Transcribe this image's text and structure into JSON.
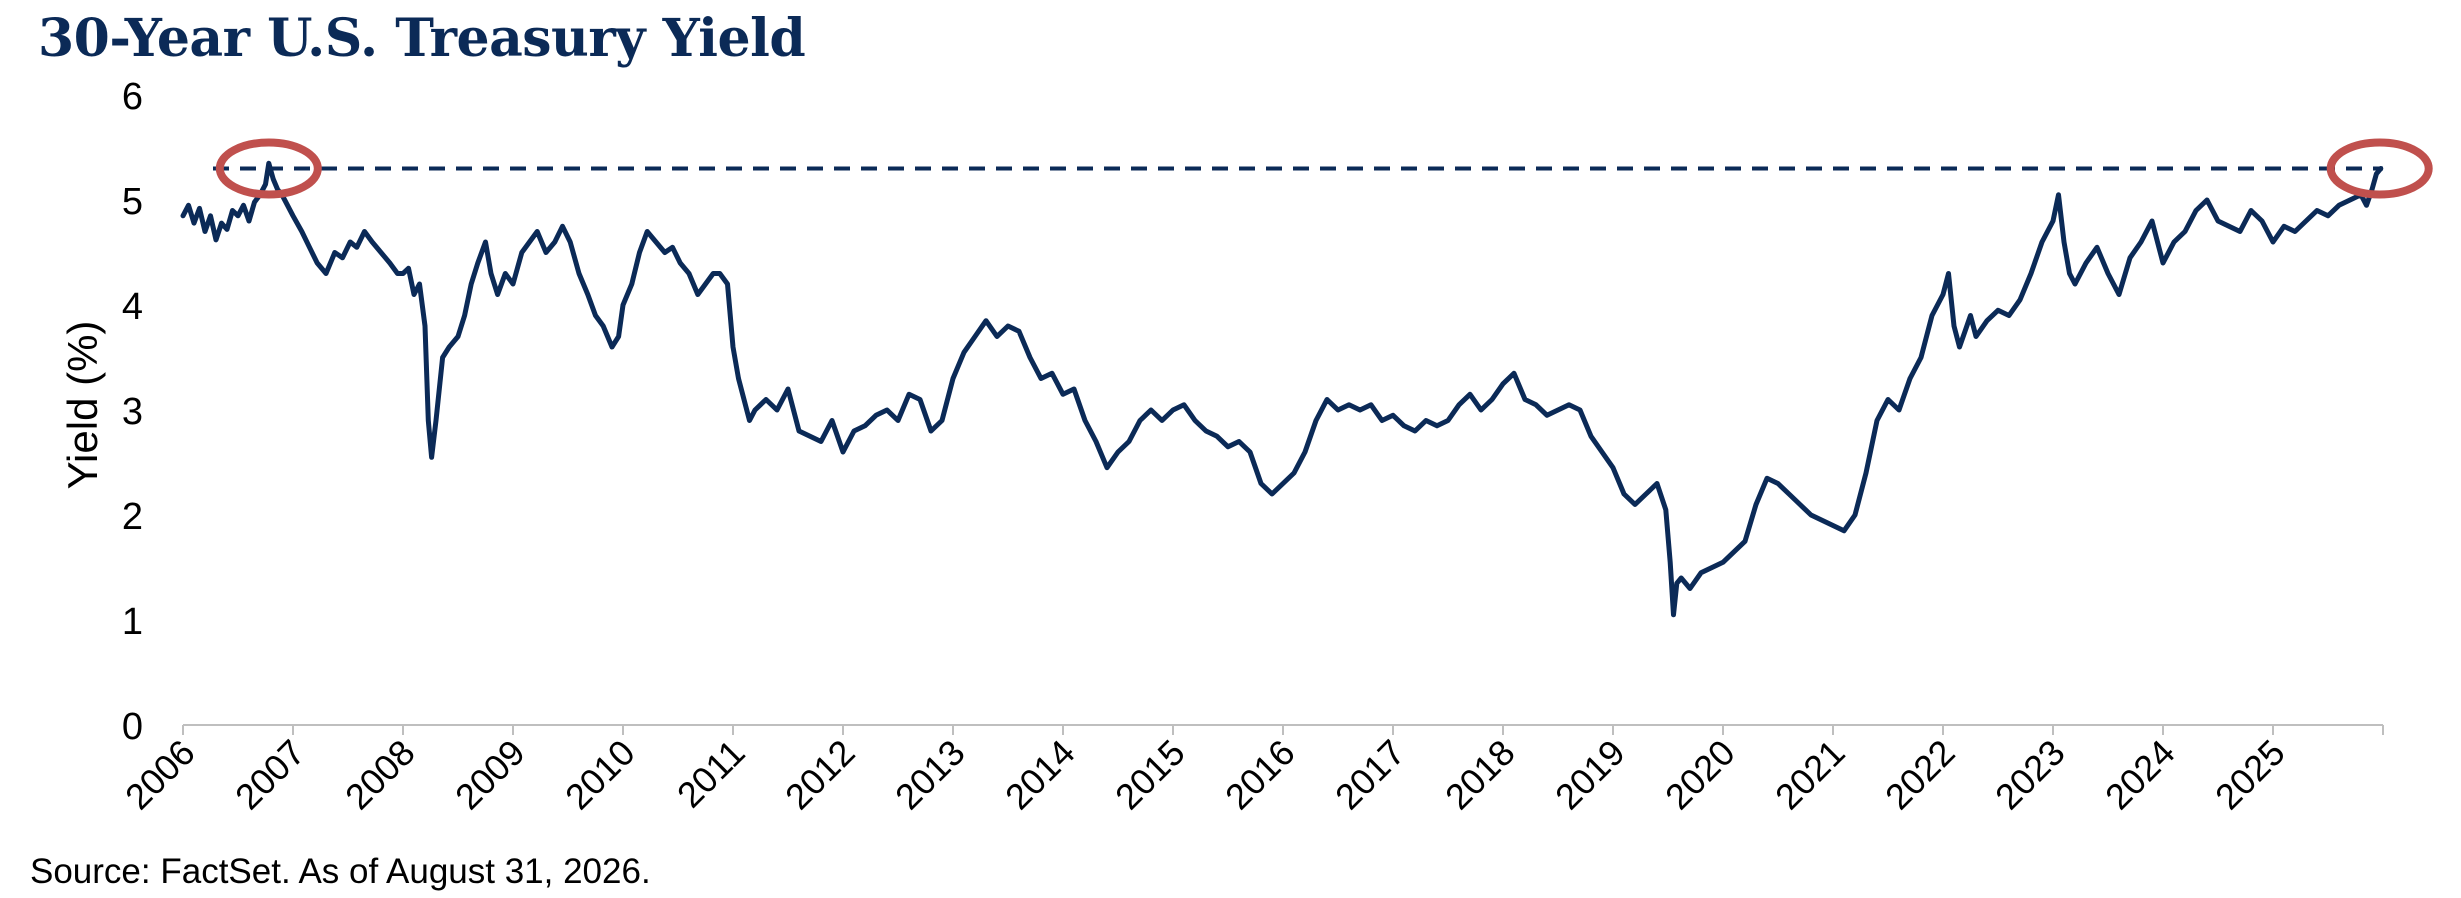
{
  "chart_data": {
    "type": "line",
    "title": "30-Year U.S. Treasury Yield",
    "ylabel": "Yield (%)",
    "xlabel": "",
    "source": "Source: FactSet. As of August 31, 2026.",
    "ylim": [
      0,
      6
    ],
    "xlim": [
      2006,
      2026
    ],
    "y_ticks": [
      "0",
      "1",
      "2",
      "3",
      "4",
      "5",
      "6"
    ],
    "x_ticks": [
      "2006",
      "2007",
      "2008",
      "2009",
      "2010",
      "2011",
      "2012",
      "2013",
      "2014",
      "2015",
      "2016",
      "2017",
      "2018",
      "2019",
      "2020",
      "2021",
      "2022",
      "2023",
      "2024",
      "2025"
    ],
    "grid": false,
    "legend": "none",
    "reference_line": {
      "y": 5.3,
      "style": "dashed"
    },
    "highlight_circles": [
      {
        "x": 2006.78,
        "y": 5.3
      },
      {
        "x": 2025.97,
        "y": 5.3
      }
    ],
    "colors": {
      "line": "#0b2a57",
      "reference": "#0b2a57",
      "circle": "#c0504d",
      "title": "#0b2a57"
    },
    "series": [
      {
        "x": [
          2006.0,
          2006.05,
          2006.1,
          2006.15,
          2006.2,
          2006.25,
          2006.3,
          2006.35,
          2006.4,
          2006.45,
          2006.5,
          2006.55,
          2006.6,
          2006.65,
          2006.7,
          2006.75,
          2006.78,
          2006.82,
          2006.86,
          2006.9,
          2006.95,
          2007.0,
          2007.08,
          2007.15,
          2007.22,
          2007.3,
          2007.38,
          2007.45,
          2007.52,
          2007.58,
          2007.65,
          2007.72,
          2007.8,
          2007.88,
          2007.95,
          2008.0,
          2008.05,
          2008.1,
          2008.15,
          2008.2,
          2008.23,
          2008.26,
          2008.3,
          2008.36,
          2008.42,
          2008.5,
          2008.56,
          2008.62,
          2008.68,
          2008.75,
          2008.8,
          2008.86,
          2008.93,
          2009.0,
          2009.08,
          2009.15,
          2009.22,
          2009.3,
          2009.38,
          2009.45,
          2009.52,
          2009.6,
          2009.68,
          2009.75,
          2009.82,
          2009.9,
          2009.96,
          2010.0,
          2010.08,
          2010.15,
          2010.22,
          2010.3,
          2010.38,
          2010.45,
          2010.52,
          2010.6,
          2010.68,
          2010.75,
          2010.82,
          2010.88,
          2010.95,
          2011.0,
          2011.05,
          2011.1,
          2011.15,
          2011.2,
          2011.3,
          2011.4,
          2011.5,
          2011.6,
          2011.7,
          2011.8,
          2011.9,
          2012.0,
          2012.1,
          2012.2,
          2012.3,
          2012.4,
          2012.5,
          2012.6,
          2012.7,
          2012.8,
          2012.9,
          2013.0,
          2013.1,
          2013.2,
          2013.3,
          2013.4,
          2013.5,
          2013.6,
          2013.7,
          2013.8,
          2013.9,
          2014.0,
          2014.1,
          2014.2,
          2014.3,
          2014.4,
          2014.5,
          2014.6,
          2014.7,
          2014.8,
          2014.9,
          2015.0,
          2015.1,
          2015.2,
          2015.3,
          2015.4,
          2015.5,
          2015.6,
          2015.7,
          2015.8,
          2015.9,
          2016.0,
          2016.1,
          2016.2,
          2016.3,
          2016.4,
          2016.5,
          2016.6,
          2016.7,
          2016.8,
          2016.9,
          2017.0,
          2017.1,
          2017.2,
          2017.3,
          2017.4,
          2017.5,
          2017.6,
          2017.7,
          2017.8,
          2017.9,
          2018.0,
          2018.1,
          2018.2,
          2018.3,
          2018.4,
          2018.5,
          2018.6,
          2018.7,
          2018.8,
          2018.9,
          2019.0,
          2019.1,
          2019.2,
          2019.3,
          2019.4,
          2019.48,
          2019.52,
          2019.55,
          2019.58,
          2019.62,
          2019.7,
          2019.8,
          2019.9,
          2020.0,
          2020.1,
          2020.2,
          2020.3,
          2020.4,
          2020.5,
          2020.6,
          2020.7,
          2020.8,
          2020.9,
          2021.0,
          2021.1,
          2021.2,
          2021.3,
          2021.4,
          2021.5,
          2021.6,
          2021.7,
          2021.8,
          2021.9,
          2022.0,
          2022.05,
          2022.1,
          2022.15,
          2022.2,
          2022.25,
          2022.3,
          2022.4,
          2022.5,
          2022.6,
          2022.7,
          2022.8,
          2022.9,
          2023.0,
          2023.05,
          2023.1,
          2023.15,
          2023.2,
          2023.3,
          2023.4,
          2023.5,
          2023.6,
          2023.7,
          2023.8,
          2023.9,
          2024.0,
          2024.1,
          2024.2,
          2024.3,
          2024.4,
          2024.5,
          2024.6,
          2024.7,
          2024.8,
          2024.9,
          2025.0,
          2025.1,
          2025.2,
          2025.3,
          2025.4,
          2025.5,
          2025.6,
          2025.7,
          2025.8,
          2025.85,
          2025.9,
          2025.94,
          2025.98
        ],
        "y": [
          4.85,
          4.95,
          4.78,
          4.92,
          4.7,
          4.85,
          4.62,
          4.78,
          4.72,
          4.9,
          4.85,
          4.95,
          4.8,
          4.98,
          5.05,
          5.15,
          5.35,
          5.2,
          5.1,
          5.05,
          4.95,
          4.85,
          4.7,
          4.55,
          4.4,
          4.3,
          4.5,
          4.45,
          4.6,
          4.55,
          4.7,
          4.6,
          4.5,
          4.4,
          4.3,
          4.3,
          4.35,
          4.1,
          4.2,
          3.8,
          2.9,
          2.55,
          2.9,
          3.5,
          3.6,
          3.7,
          3.9,
          4.2,
          4.4,
          4.6,
          4.3,
          4.1,
          4.3,
          4.2,
          4.5,
          4.6,
          4.7,
          4.5,
          4.6,
          4.75,
          4.6,
          4.3,
          4.1,
          3.9,
          3.8,
          3.6,
          3.7,
          4.0,
          4.2,
          4.5,
          4.7,
          4.6,
          4.5,
          4.55,
          4.4,
          4.3,
          4.1,
          4.2,
          4.3,
          4.3,
          4.2,
          3.6,
          3.3,
          3.1,
          2.9,
          3.0,
          3.1,
          3.0,
          3.2,
          2.8,
          2.75,
          2.7,
          2.9,
          2.6,
          2.8,
          2.85,
          2.95,
          3.0,
          2.9,
          3.15,
          3.1,
          2.8,
          2.9,
          3.3,
          3.55,
          3.7,
          3.85,
          3.7,
          3.8,
          3.75,
          3.5,
          3.3,
          3.35,
          3.15,
          3.2,
          2.9,
          2.7,
          2.45,
          2.6,
          2.7,
          2.9,
          3.0,
          2.9,
          3.0,
          3.05,
          2.9,
          2.8,
          2.75,
          2.65,
          2.7,
          2.6,
          2.3,
          2.2,
          2.3,
          2.4,
          2.6,
          2.9,
          3.1,
          3.0,
          3.05,
          3.0,
          3.05,
          2.9,
          2.95,
          2.85,
          2.8,
          2.9,
          2.85,
          2.9,
          3.05,
          3.15,
          3.0,
          3.1,
          3.25,
          3.35,
          3.1,
          3.05,
          2.95,
          3.0,
          3.05,
          3.0,
          2.75,
          2.6,
          2.45,
          2.2,
          2.1,
          2.2,
          2.3,
          2.05,
          1.55,
          1.05,
          1.35,
          1.4,
          1.3,
          1.45,
          1.5,
          1.55,
          1.65,
          1.75,
          2.1,
          2.35,
          2.3,
          2.2,
          2.1,
          2.0,
          1.95,
          1.9,
          1.85,
          2.0,
          2.4,
          2.9,
          3.1,
          3.0,
          3.3,
          3.5,
          3.9,
          4.1,
          4.3,
          3.8,
          3.6,
          3.75,
          3.9,
          3.7,
          3.85,
          3.95,
          3.9,
          4.05,
          4.3,
          4.6,
          4.8,
          5.05,
          4.6,
          4.3,
          4.2,
          4.4,
          4.55,
          4.3,
          4.1,
          4.45,
          4.6,
          4.8,
          4.4,
          4.6,
          4.7,
          4.9,
          5.0,
          4.8,
          4.75,
          4.7,
          4.9,
          4.8,
          4.6,
          4.75,
          4.7,
          4.8,
          4.9,
          4.85,
          4.95,
          5.0,
          5.05,
          4.95,
          5.1,
          5.25,
          5.3
        ]
      }
    ]
  }
}
